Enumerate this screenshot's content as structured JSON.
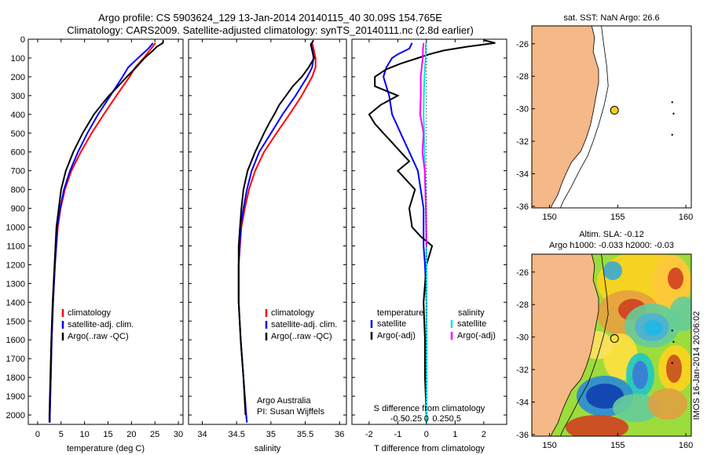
{
  "header": {
    "line1": "Argo profile: CS 5903624_129 13-Jan-2014 20140115_40 30.09S 154.765E",
    "line2": "Climatology: CARS2009. Satellite-adjusted climatology: synTS_20140111.nc (2.8d earlier)"
  },
  "colors": {
    "climatology": "#ff0000",
    "satellite_adj": "#0000ff",
    "argo": "#000000",
    "salinity_sat": "#00e5e5",
    "salinity_argo": "#ff00ff",
    "land": "#f5b887"
  },
  "chart_data": [
    {
      "type": "line",
      "id": "temperature",
      "xlabel": "temperature (deg C)",
      "xlim": [
        -2,
        31
      ],
      "ylim": [
        0,
        2050
      ],
      "xticks": [
        0,
        5,
        10,
        15,
        20,
        25,
        30
      ],
      "yticks": [
        0,
        100,
        200,
        300,
        400,
        500,
        600,
        700,
        800,
        900,
        1000,
        1100,
        1200,
        1300,
        1400,
        1500,
        1600,
        1700,
        1800,
        1900,
        2000
      ],
      "legend": [
        "climatology",
        "satellite-adj. clim.",
        "Argo(..raw -QC)"
      ],
      "series": [
        {
          "name": "climatology",
          "color": "climatology",
          "depth": [
            20,
            50,
            100,
            150,
            200,
            300,
            400,
            500,
            600,
            700,
            800,
            900,
            1000,
            1200,
            1400,
            1600,
            1800,
            2000,
            2040
          ],
          "values": [
            25.1,
            24.2,
            22.6,
            20.8,
            19.6,
            16.8,
            14.1,
            11.5,
            9.2,
            7.2,
            5.8,
            4.9,
            4.3,
            3.7,
            3.3,
            3.0,
            2.8,
            2.6,
            2.6
          ]
        },
        {
          "name": "satellite-adj. clim.",
          "color": "satellite_adj",
          "depth": [
            20,
            50,
            100,
            150,
            200,
            300,
            400,
            500,
            600,
            700,
            800,
            900,
            1000,
            1200,
            1400,
            1600,
            1800,
            2000,
            2040
          ],
          "values": [
            24.6,
            23.6,
            21.4,
            19.3,
            18.1,
            15.5,
            12.9,
            10.6,
            8.6,
            6.9,
            5.6,
            4.8,
            4.2,
            3.7,
            3.3,
            3.0,
            2.8,
            2.6,
            2.6
          ]
        },
        {
          "name": "Argo(..raw -QC)",
          "color": "argo",
          "depth": [
            5,
            20,
            40,
            60,
            100,
            150,
            200,
            260,
            300,
            350,
            400,
            500,
            600,
            700,
            800,
            900,
            1000,
            1200,
            1400,
            1600,
            1800,
            2000,
            2040
          ],
          "values": [
            26.8,
            26.7,
            25.4,
            24.6,
            22.8,
            21.0,
            19.0,
            16.8,
            15.2,
            13.6,
            12.0,
            9.6,
            7.6,
            6.0,
            5.0,
            4.5,
            4.0,
            3.6,
            3.2,
            2.9,
            2.7,
            2.5,
            2.5
          ]
        }
      ]
    },
    {
      "type": "line",
      "id": "salinity",
      "xlabel": "salinity",
      "xlim": [
        33.8,
        36.1
      ],
      "ylim": [
        0,
        2050
      ],
      "xticks": [
        34,
        34.5,
        35,
        35.5,
        36
      ],
      "legend": [
        "climatology",
        "satellite-adj. clim.",
        "Argo(..raw -QC)"
      ],
      "annotation": [
        "Argo Australia",
        "PI: Susan Wijffels"
      ],
      "series": [
        {
          "name": "climatology",
          "color": "climatology",
          "depth": [
            20,
            50,
            100,
            150,
            200,
            300,
            400,
            500,
            600,
            700,
            800,
            900,
            1000,
            1200,
            1400,
            1600,
            1800,
            2000,
            2040
          ],
          "values": [
            35.6,
            35.62,
            35.65,
            35.65,
            35.6,
            35.45,
            35.27,
            35.08,
            34.9,
            34.77,
            34.68,
            34.62,
            34.57,
            34.53,
            34.53,
            34.56,
            34.6,
            34.64,
            34.65
          ]
        },
        {
          "name": "satellite-adj. clim.",
          "color": "satellite_adj",
          "depth": [
            20,
            50,
            100,
            150,
            200,
            300,
            400,
            500,
            600,
            700,
            800,
            900,
            1000,
            1200,
            1400,
            1600,
            1800,
            2000,
            2040
          ],
          "values": [
            35.58,
            35.6,
            35.62,
            35.6,
            35.53,
            35.36,
            35.17,
            35.0,
            34.83,
            34.72,
            34.65,
            34.6,
            34.56,
            34.53,
            34.53,
            34.56,
            34.6,
            34.64,
            34.65
          ]
        },
        {
          "name": "Argo(..raw -QC)",
          "color": "argo",
          "depth": [
            5,
            30,
            60,
            100,
            150,
            200,
            250,
            300,
            350,
            400,
            450,
            500,
            600,
            700,
            800,
            900,
            1000,
            1100,
            1200,
            1400,
            1600,
            1800,
            2000
          ],
          "values": [
            35.62,
            35.58,
            35.6,
            35.63,
            35.55,
            35.45,
            35.32,
            35.22,
            35.12,
            35.05,
            34.97,
            34.9,
            34.77,
            34.66,
            34.6,
            34.57,
            34.55,
            34.53,
            34.53,
            34.53,
            34.56,
            34.6,
            34.63
          ]
        }
      ]
    },
    {
      "type": "line",
      "id": "difference",
      "xlabel": "T difference from climatology",
      "xlabel_top": "S difference from climatology",
      "xlim": [
        -2.6,
        2.8
      ],
      "ylim": [
        0,
        2050
      ],
      "xticks_T": [
        -2,
        -1,
        0,
        1,
        2
      ],
      "xticks_S": [
        "-0.5",
        "-0.25",
        "0",
        "0.25",
        "0.5"
      ],
      "legend_left_title": "temperature",
      "legend_right_title": "salinity",
      "legend_left": [
        "satellite",
        "Argo(-adj)"
      ],
      "legend_right": [
        "satellite",
        "Argo(-adj)"
      ],
      "series": [
        {
          "name": "temperature satellite",
          "color": "satellite_adj",
          "depth": [
            20,
            50,
            80,
            100,
            150,
            200,
            300,
            400,
            500,
            600,
            700,
            800,
            900,
            1000,
            1100,
            1200,
            1400,
            1600,
            1800,
            2000,
            2040
          ],
          "values": [
            -0.5,
            -0.6,
            -1.0,
            -1.2,
            -1.4,
            -1.5,
            -1.3,
            -1.2,
            -0.9,
            -0.6,
            -0.3,
            -0.2,
            -0.1,
            -0.1,
            -0.1,
            -0.05,
            0,
            0,
            0,
            0,
            0
          ]
        },
        {
          "name": "temperature Argo(-adj)",
          "color": "argo",
          "depth": [
            5,
            20,
            40,
            60,
            80,
            100,
            130,
            160,
            200,
            250,
            300,
            350,
            400,
            450,
            500,
            550,
            600,
            650,
            700,
            750,
            800,
            900,
            1000,
            1050,
            1100,
            1200,
            1400,
            1600,
            1800,
            2000
          ],
          "values": [
            2.0,
            2.4,
            1.4,
            0.6,
            0.1,
            -0.3,
            -0.9,
            -1.4,
            -1.8,
            -1.8,
            -1.0,
            -1.6,
            -2.0,
            -1.8,
            -1.5,
            -1.2,
            -0.9,
            -0.6,
            -1.0,
            -0.7,
            -0.4,
            -0.6,
            -0.5,
            -0.2,
            0.2,
            0.0,
            -0.1,
            -0.05,
            -0.05,
            0
          ]
        },
        {
          "name": "salinity satellite",
          "color": "salinity_sat",
          "depth": [
            20,
            100,
            200,
            300,
            400,
            500,
            600,
            700,
            800,
            900,
            1000,
            1200,
            1400,
            1600,
            1800,
            2000,
            2040
          ],
          "values": [
            -0.02,
            -0.03,
            -0.07,
            -0.09,
            -0.1,
            -0.08,
            -0.07,
            -0.05,
            -0.03,
            -0.02,
            -0.01,
            0,
            0,
            0,
            0,
            0,
            0
          ]
        },
        {
          "name": "salinity Argo(-adj)",
          "color": "salinity_argo",
          "depth": [
            20,
            50,
            100,
            200,
            300,
            400,
            500,
            600,
            700,
            800,
            900,
            1000,
            1100
          ],
          "values": [
            -0.1,
            -0.12,
            -0.13,
            -0.2,
            -0.2,
            -0.22,
            -0.1,
            -0.14,
            -0.06,
            -0.04,
            -0.02,
            -0.01,
            0
          ]
        }
      ]
    }
  ],
  "map_top": {
    "title": "sat. SST: NaN Argo: 26.6",
    "xticks": [
      "150",
      "155",
      "160"
    ],
    "yticks": [
      "-26",
      "-28",
      "-30",
      "-32",
      "-34",
      "-36"
    ]
  },
  "map_bottom": {
    "title_line1": "Altim. SLA: -0.12",
    "title_line2": "Argo h1000: -0.033 h2000: -0.03",
    "xticks": [
      "150",
      "155",
      "160"
    ],
    "yticks": [
      "-26",
      "-28",
      "-30",
      "-32",
      "-34",
      "-36"
    ]
  },
  "stamp": "IMOS 16-Jan-2014 20:06:02"
}
